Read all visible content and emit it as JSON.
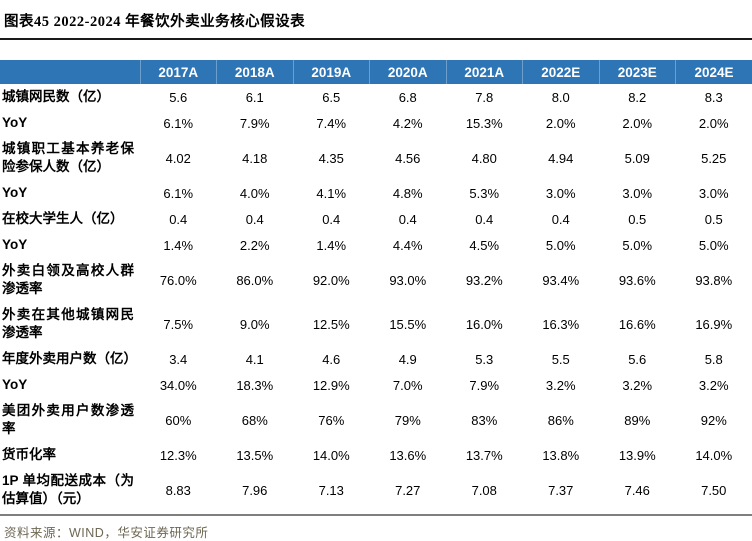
{
  "figure": {
    "title": "图表45 2022-2024 年餐饮外卖业务核心假设表",
    "source": "资料来源：WIND，华安证券研究所"
  },
  "colors": {
    "header_bg": "#2e75b6",
    "header_text": "#ffffff",
    "title_rule": "#1a1a1a",
    "bottom_rule": "#7f7f7f",
    "source_text": "#6e6753",
    "body_text": "#000000"
  },
  "chart_data": {
    "type": "table",
    "title": "图表45 2022-2024 年餐饮外卖业务核心假设表",
    "columns": [
      "2017A",
      "2018A",
      "2019A",
      "2020A",
      "2021A",
      "2022E",
      "2023E",
      "2024E"
    ],
    "rows": [
      {
        "label": "城镇网民数（亿）",
        "values": [
          "5.6",
          "6.1",
          "6.5",
          "6.8",
          "7.8",
          "8.0",
          "8.2",
          "8.3"
        ]
      },
      {
        "label": "YoY",
        "values": [
          "6.1%",
          "7.9%",
          "7.4%",
          "4.2%",
          "15.3%",
          "2.0%",
          "2.0%",
          "2.0%"
        ]
      },
      {
        "label": "城镇职工基本养老保险参保人数（亿）",
        "values": [
          "4.02",
          "4.18",
          "4.35",
          "4.56",
          "4.80",
          "4.94",
          "5.09",
          "5.25"
        ]
      },
      {
        "label": "YoY",
        "values": [
          "6.1%",
          "4.0%",
          "4.1%",
          "4.8%",
          "5.3%",
          "3.0%",
          "3.0%",
          "3.0%"
        ]
      },
      {
        "label": "在校大学生人（亿）",
        "values": [
          "0.4",
          "0.4",
          "0.4",
          "0.4",
          "0.4",
          "0.4",
          "0.5",
          "0.5"
        ]
      },
      {
        "label": "YoY",
        "values": [
          "1.4%",
          "2.2%",
          "1.4%",
          "4.4%",
          "4.5%",
          "5.0%",
          "5.0%",
          "5.0%"
        ]
      },
      {
        "label": "外卖白领及高校人群渗透率",
        "values": [
          "76.0%",
          "86.0%",
          "92.0%",
          "93.0%",
          "93.2%",
          "93.4%",
          "93.6%",
          "93.8%"
        ]
      },
      {
        "label": "外卖在其他城镇网民渗透率",
        "values": [
          "7.5%",
          "9.0%",
          "12.5%",
          "15.5%",
          "16.0%",
          "16.3%",
          "16.6%",
          "16.9%"
        ]
      },
      {
        "label": "年度外卖用户数（亿）",
        "values": [
          "3.4",
          "4.1",
          "4.6",
          "4.9",
          "5.3",
          "5.5",
          "5.6",
          "5.8"
        ]
      },
      {
        "label": "YoY",
        "values": [
          "34.0%",
          "18.3%",
          "12.9%",
          "7.0%",
          "7.9%",
          "3.2%",
          "3.2%",
          "3.2%"
        ]
      },
      {
        "label": "美团外卖用户数渗透率",
        "values": [
          "60%",
          "68%",
          "76%",
          "79%",
          "83%",
          "86%",
          "89%",
          "92%"
        ]
      },
      {
        "label": "货币化率",
        "values": [
          "12.3%",
          "13.5%",
          "14.0%",
          "13.6%",
          "13.7%",
          "13.8%",
          "13.9%",
          "14.0%"
        ]
      },
      {
        "label": "1P 单均配送成本（为估算值）（元）",
        "values": [
          "8.83",
          "7.96",
          "7.13",
          "7.27",
          "7.08",
          "7.37",
          "7.46",
          "7.50"
        ]
      }
    ]
  }
}
